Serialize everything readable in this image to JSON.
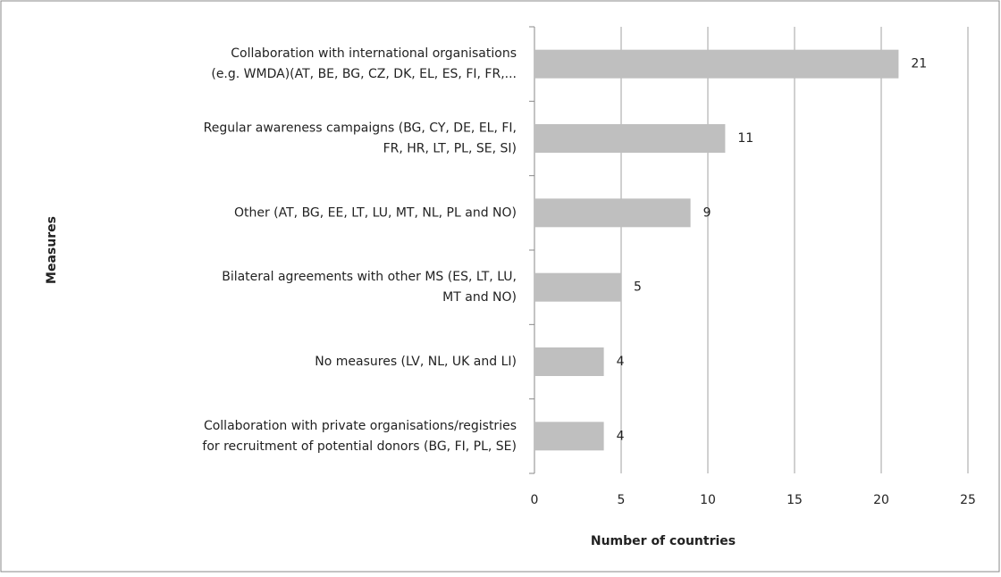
{
  "chart_data": {
    "type": "barh",
    "categories": [
      [
        "Collaboration with international organisations",
        "(e.g. WMDA)(AT, BE, BG, CZ, DK, EL, ES, FI, FR,..."
      ],
      [
        "Regular awareness campaigns (BG, CY, DE, EL, FI,",
        "FR, HR, LT, PL, SE, SI)"
      ],
      [
        "Other (AT, BG, EE, LT, LU, MT, NL, PL and NO)"
      ],
      [
        "Bilateral agreements with other MS (ES, LT, LU,",
        "MT and NO)"
      ],
      [
        "No measures (LV, NL, UK and LI)"
      ],
      [
        "Collaboration with private organisations/registries",
        "for recruitment of potential donors (BG, FI, PL, SE)"
      ]
    ],
    "values": [
      21,
      11,
      9,
      5,
      4,
      4
    ],
    "color": "#bfbfbf",
    "xlim": [
      0,
      25
    ],
    "xticks": [
      0,
      5,
      10,
      15,
      20,
      25
    ],
    "grid": true,
    "xlabel": "Number of countries",
    "ylabel": "Measures"
  }
}
